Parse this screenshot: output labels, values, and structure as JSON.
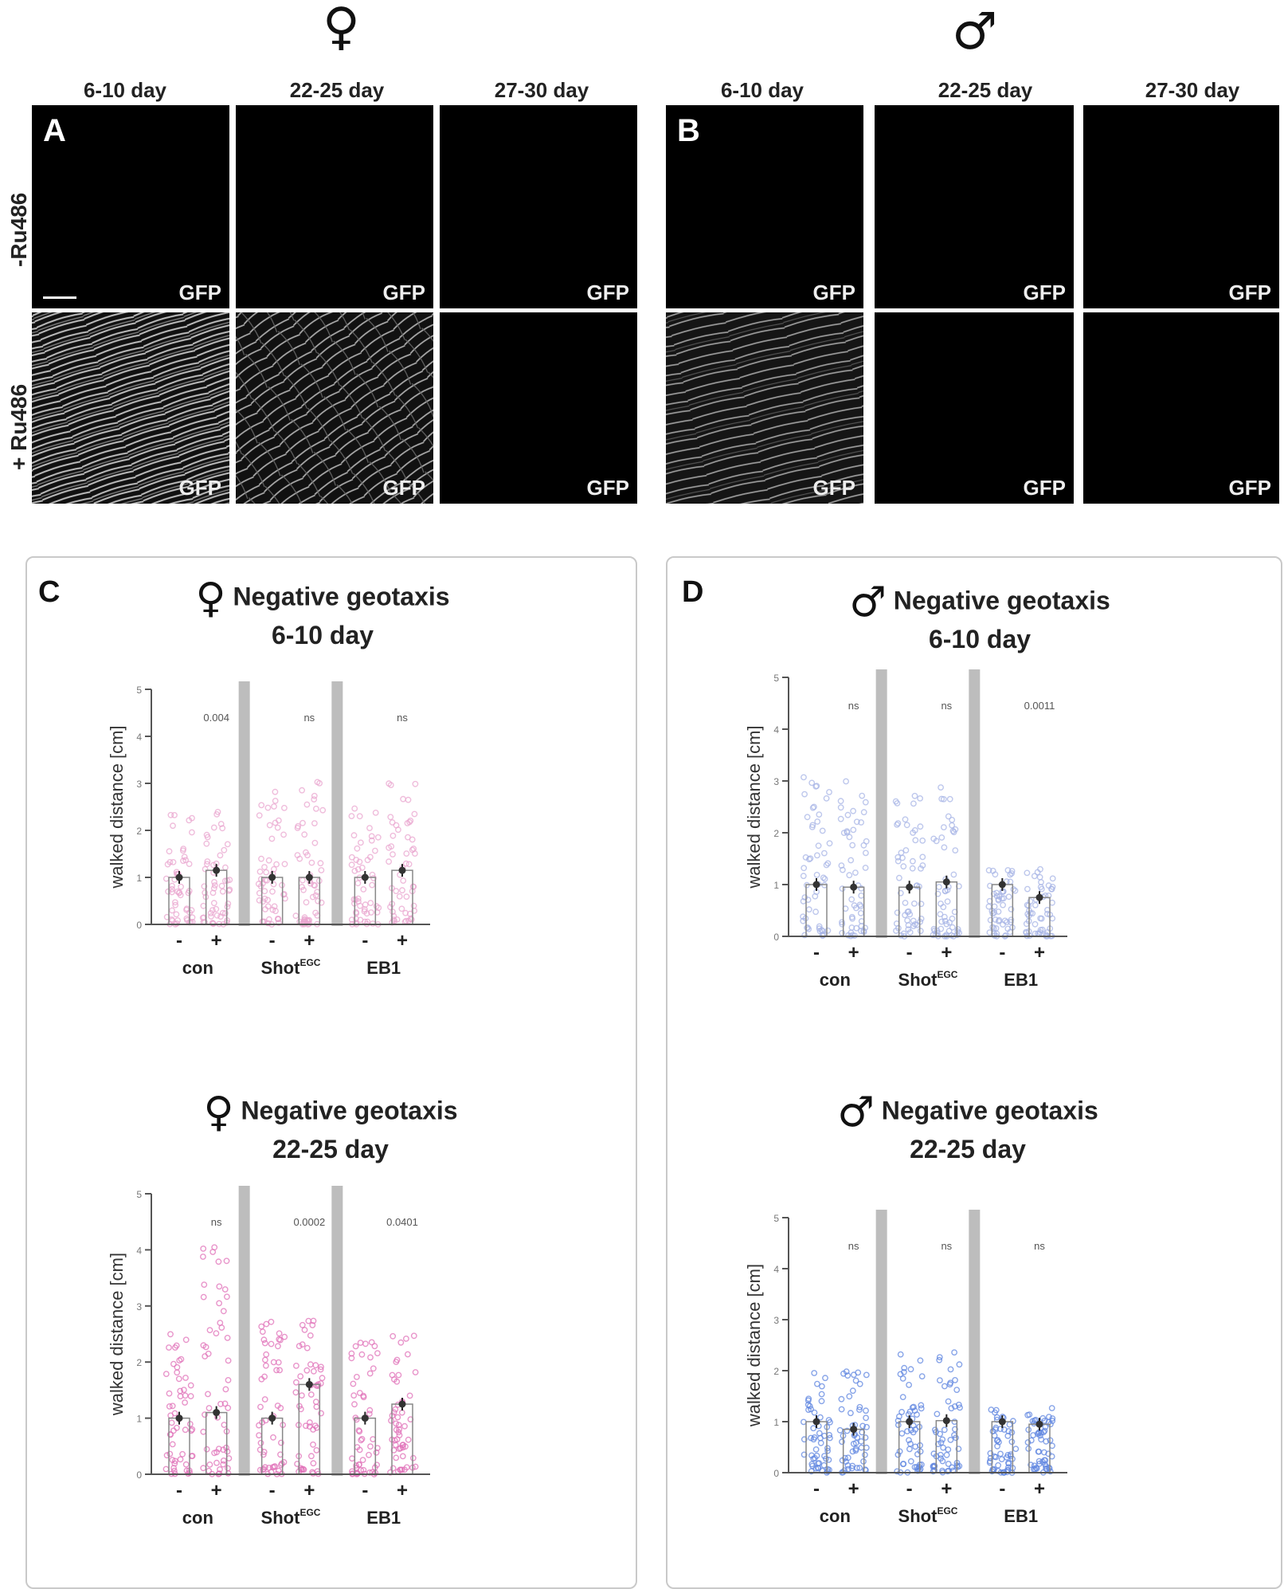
{
  "header": {
    "female_symbol": "♀",
    "male_symbol": "♂",
    "time_columns": [
      "6-10 day",
      "22-25 day",
      "27-30 day"
    ],
    "row_labels": [
      "-Ru486",
      "+ Ru486"
    ],
    "panel_A": "A",
    "panel_B": "B",
    "stain": "GFP"
  },
  "panel_C": {
    "letter": "C",
    "symbol": "♀"
  },
  "panel_D": {
    "letter": "D",
    "symbol": "♂"
  },
  "colors": {
    "female": "#e07ab8",
    "male": "#6f8fdd",
    "separator": "#bdbdbd"
  },
  "chart_data": [
    {
      "type": "bar",
      "title": "Negative geotaxis",
      "subtitle": "6-10 day",
      "ylabel": "walked distance [cm]",
      "ylim": [
        0,
        5
      ],
      "yticks": [
        "0",
        "1",
        "2",
        "3",
        "4",
        "5"
      ],
      "groups": [
        {
          "name": "con",
          "superscript": "",
          "values": [
            1.0,
            1.15
          ],
          "stat": "0.004"
        },
        {
          "name": "Shot",
          "superscript": "EGC",
          "values": [
            1.0,
            1.0
          ],
          "stat": "ns"
        },
        {
          "name": "EB1",
          "superscript": "",
          "values": [
            1.0,
            1.15
          ],
          "stat": "ns"
        }
      ],
      "conditions": [
        "-",
        "+"
      ],
      "color": "#e9a6cf",
      "scatter_max": [
        2.5,
        2.5,
        3.0,
        3.2,
        2.5,
        3.1
      ]
    },
    {
      "type": "bar",
      "title": "Negative geotaxis",
      "subtitle": "22-25 day",
      "ylabel": "walked distance [cm]",
      "ylim": [
        0,
        5
      ],
      "yticks": [
        "0",
        "1",
        "2",
        "3",
        "4",
        "5"
      ],
      "groups": [
        {
          "name": "con",
          "superscript": "",
          "values": [
            1.0,
            1.1
          ],
          "stat": "ns"
        },
        {
          "name": "Shot",
          "superscript": "EGC",
          "values": [
            1.0,
            1.6
          ],
          "stat": "0.0002"
        },
        {
          "name": "EB1",
          "superscript": "",
          "values": [
            1.0,
            1.25
          ],
          "stat": "0.0401"
        }
      ],
      "conditions": [
        "-",
        "+"
      ],
      "color": "#e070b8",
      "scatter_max": [
        2.6,
        4.1,
        2.8,
        2.8,
        2.4,
        2.5
      ]
    },
    {
      "type": "bar",
      "title": "Negative geotaxis",
      "subtitle": "6-10 day",
      "ylabel": "walked distance [cm]",
      "ylim": [
        0,
        5
      ],
      "yticks": [
        "0",
        "1",
        "2",
        "3",
        "4",
        "5"
      ],
      "groups": [
        {
          "name": "con",
          "superscript": "",
          "values": [
            1.0,
            0.95
          ],
          "stat": "ns"
        },
        {
          "name": "Shot",
          "superscript": "EGC",
          "values": [
            0.95,
            1.05
          ],
          "stat": "ns"
        },
        {
          "name": "EB1",
          "superscript": "",
          "values": [
            1.0,
            0.75
          ],
          "stat": "0.0011"
        }
      ],
      "conditions": [
        "-",
        "+"
      ],
      "color": "#a7b4e6",
      "scatter_max": [
        3.1,
        3.0,
        2.9,
        2.9,
        1.3,
        1.3
      ]
    },
    {
      "type": "bar",
      "title": "Negative geotaxis",
      "subtitle": "22-25 day",
      "ylabel": "walked distance [cm]",
      "ylim": [
        0,
        5
      ],
      "yticks": [
        "0",
        "1",
        "2",
        "3",
        "4",
        "5"
      ],
      "groups": [
        {
          "name": "con",
          "superscript": "",
          "values": [
            1.0,
            0.85
          ],
          "stat": "ns"
        },
        {
          "name": "Shot",
          "superscript": "EGC",
          "values": [
            1.0,
            1.02
          ],
          "stat": "ns"
        },
        {
          "name": "EB1",
          "superscript": "",
          "values": [
            1.0,
            0.95
          ],
          "stat": "ns"
        }
      ],
      "conditions": [
        "-",
        "+"
      ],
      "color": "#5f86e0",
      "scatter_max": [
        2.0,
        2.1,
        2.4,
        2.4,
        1.3,
        1.3
      ]
    }
  ]
}
